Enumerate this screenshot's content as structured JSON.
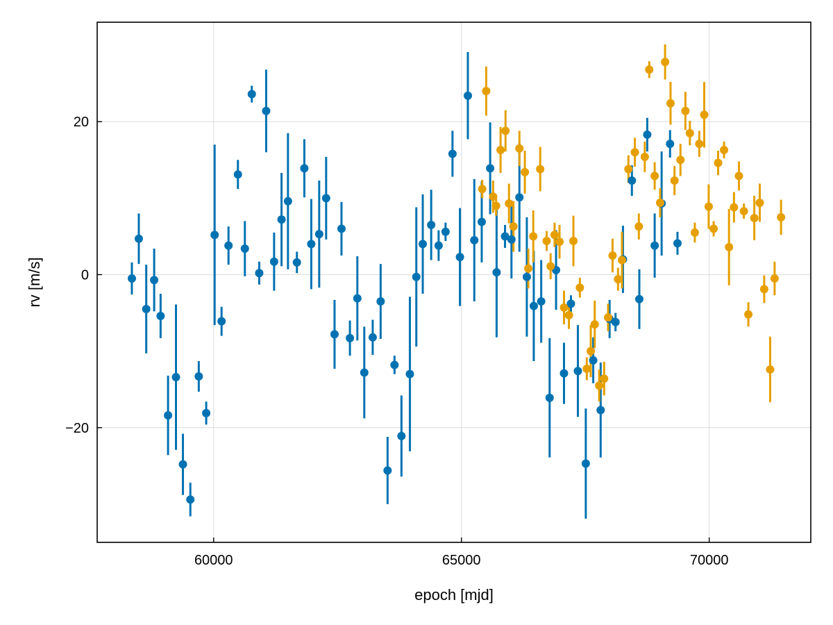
{
  "chart_data": {
    "type": "scatter",
    "xlabel": "epoch [mjd]",
    "ylabel": "rv [m/s]",
    "xlim": [
      57650,
      72050
    ],
    "ylim": [
      -35,
      33
    ],
    "x_ticks": [
      {
        "value": 60000,
        "label": "60000"
      },
      {
        "value": 65000,
        "label": "65000"
      },
      {
        "value": 70000,
        "label": "70000"
      }
    ],
    "y_ticks": [
      {
        "value": -20,
        "label": "−20"
      },
      {
        "value": 0,
        "label": "0"
      },
      {
        "value": 20,
        "label": "20"
      }
    ],
    "grid": true,
    "legend": "none",
    "series": [
      {
        "color": "#0072B2",
        "points": [
          {
            "x": 58350,
            "y": -0.5,
            "err": 2.1
          },
          {
            "x": 58490,
            "y": 4.7,
            "err": 3.3
          },
          {
            "x": 58640,
            "y": -4.5,
            "err": 5.8
          },
          {
            "x": 58800,
            "y": -0.7,
            "err": 4.1
          },
          {
            "x": 58930,
            "y": -5.4,
            "err": 2.9
          },
          {
            "x": 59080,
            "y": -18.4,
            "err": 5.2
          },
          {
            "x": 59240,
            "y": -13.4,
            "err": 9.5
          },
          {
            "x": 59380,
            "y": -24.8,
            "err": 4.0
          },
          {
            "x": 59530,
            "y": -29.4,
            "err": 2.2
          },
          {
            "x": 59700,
            "y": -13.3,
            "err": 2.0
          },
          {
            "x": 59850,
            "y": -18.1,
            "err": 1.5
          },
          {
            "x": 60020,
            "y": 5.2,
            "err": 11.8
          },
          {
            "x": 60160,
            "y": -6.1,
            "err": 1.9
          },
          {
            "x": 60300,
            "y": 3.8,
            "err": 2.5
          },
          {
            "x": 60490,
            "y": 13.1,
            "err": 1.9
          },
          {
            "x": 60630,
            "y": 3.4,
            "err": 3.6
          },
          {
            "x": 60770,
            "y": 23.6,
            "err": 1.1
          },
          {
            "x": 60920,
            "y": 0.2,
            "err": 1.5
          },
          {
            "x": 61060,
            "y": 21.4,
            "err": 5.4
          },
          {
            "x": 61220,
            "y": 1.7,
            "err": 3.8
          },
          {
            "x": 61370,
            "y": 7.2,
            "err": 6.1
          },
          {
            "x": 61500,
            "y": 9.6,
            "err": 8.9
          },
          {
            "x": 61680,
            "y": 1.6,
            "err": 1.4
          },
          {
            "x": 61830,
            "y": 13.9,
            "err": 3.8
          },
          {
            "x": 61970,
            "y": 4.0,
            "err": 5.9
          },
          {
            "x": 62130,
            "y": 5.3,
            "err": 7.0
          },
          {
            "x": 62270,
            "y": 10.0,
            "err": 5.4
          },
          {
            "x": 62440,
            "y": -7.8,
            "err": 4.5
          },
          {
            "x": 62580,
            "y": 6.0,
            "err": 3.5
          },
          {
            "x": 62750,
            "y": -8.3,
            "err": 2.3
          },
          {
            "x": 62900,
            "y": -3.1,
            "err": 5.5
          },
          {
            "x": 63040,
            "y": -12.8,
            "err": 6.0
          },
          {
            "x": 63210,
            "y": -8.2,
            "err": 2.3
          },
          {
            "x": 63370,
            "y": -3.5,
            "err": 4.9
          },
          {
            "x": 63510,
            "y": -25.6,
            "err": 4.4
          },
          {
            "x": 63650,
            "y": -11.8,
            "err": 1.2
          },
          {
            "x": 63790,
            "y": -21.1,
            "err": 5.3
          },
          {
            "x": 63960,
            "y": -13.0,
            "err": 10.1
          },
          {
            "x": 64090,
            "y": -0.3,
            "err": 9.1
          },
          {
            "x": 64220,
            "y": 4.0,
            "err": 6.5
          },
          {
            "x": 64390,
            "y": 6.5,
            "err": 4.6
          },
          {
            "x": 64540,
            "y": 3.8,
            "err": 2.0
          },
          {
            "x": 64680,
            "y": 5.6,
            "err": 1.2
          },
          {
            "x": 64820,
            "y": 15.8,
            "err": 3.0
          },
          {
            "x": 64970,
            "y": 2.3,
            "err": 6.4
          },
          {
            "x": 65130,
            "y": 23.4,
            "err": 5.7
          },
          {
            "x": 65260,
            "y": 4.5,
            "err": 8.0
          },
          {
            "x": 65410,
            "y": 6.9,
            "err": 5.3
          },
          {
            "x": 65580,
            "y": 13.9,
            "err": 6.0
          },
          {
            "x": 65710,
            "y": 0.3,
            "err": 8.5
          },
          {
            "x": 65880,
            "y": 5.0,
            "err": 1.5
          },
          {
            "x": 66010,
            "y": 4.6,
            "err": 5.1
          },
          {
            "x": 66170,
            "y": 10.1,
            "err": 7.1
          },
          {
            "x": 66320,
            "y": -0.3,
            "err": 7.8
          },
          {
            "x": 66460,
            "y": -4.1,
            "err": 7.2
          },
          {
            "x": 66610,
            "y": -3.5,
            "err": 5.4
          },
          {
            "x": 66780,
            "y": -16.1,
            "err": 7.8
          },
          {
            "x": 66910,
            "y": 0.6,
            "err": 5.2
          },
          {
            "x": 67070,
            "y": -12.9,
            "err": 4.0
          },
          {
            "x": 67210,
            "y": -3.8,
            "err": 1.1
          },
          {
            "x": 67350,
            "y": -12.6,
            "err": 6.0
          },
          {
            "x": 67510,
            "y": -24.7,
            "err": 7.2
          },
          {
            "x": 67660,
            "y": -11.2,
            "err": 3.0
          },
          {
            "x": 67810,
            "y": -17.7,
            "err": 6.2
          },
          {
            "x": 67990,
            "y": -5.8,
            "err": 2.5
          },
          {
            "x": 68110,
            "y": -6.2,
            "err": 1.2
          },
          {
            "x": 68260,
            "y": 2.0,
            "err": 4.4
          },
          {
            "x": 68440,
            "y": 12.3,
            "err": 2.0
          },
          {
            "x": 68590,
            "y": -3.2,
            "err": 3.9
          },
          {
            "x": 68750,
            "y": 18.3,
            "err": 2.2
          },
          {
            "x": 68900,
            "y": 3.8,
            "err": 4.2
          },
          {
            "x": 69040,
            "y": 9.3,
            "err": 6.8
          },
          {
            "x": 69210,
            "y": 17.1,
            "err": 1.8
          },
          {
            "x": 69360,
            "y": 4.1,
            "err": 1.5
          }
        ]
      },
      {
        "color": "#E69F00",
        "points": [
          {
            "x": 65420,
            "y": 11.2,
            "err": 1.2
          },
          {
            "x": 65500,
            "y": 24.0,
            "err": 3.2
          },
          {
            "x": 65640,
            "y": 10.2,
            "err": 2.1
          },
          {
            "x": 65700,
            "y": 9.0,
            "err": 1.3
          },
          {
            "x": 65790,
            "y": 16.3,
            "err": 3.0
          },
          {
            "x": 65890,
            "y": 18.8,
            "err": 2.7
          },
          {
            "x": 65960,
            "y": 9.3,
            "err": 2.6
          },
          {
            "x": 66050,
            "y": 6.3,
            "err": 3.3
          },
          {
            "x": 66170,
            "y": 16.5,
            "err": 2.3
          },
          {
            "x": 66280,
            "y": 13.4,
            "err": 2.8
          },
          {
            "x": 66350,
            "y": 0.8,
            "err": 2.6
          },
          {
            "x": 66450,
            "y": 5.0,
            "err": 3.4
          },
          {
            "x": 66590,
            "y": 13.8,
            "err": 2.9
          },
          {
            "x": 66720,
            "y": 4.4,
            "err": 1.3
          },
          {
            "x": 66800,
            "y": 1.1,
            "err": 1.7
          },
          {
            "x": 66880,
            "y": 5.2,
            "err": 1.6
          },
          {
            "x": 66980,
            "y": 4.3,
            "err": 2.2
          },
          {
            "x": 67070,
            "y": -4.3,
            "err": 2.2
          },
          {
            "x": 67170,
            "y": -5.3,
            "err": 1.8
          },
          {
            "x": 67260,
            "y": 4.4,
            "err": 3.3
          },
          {
            "x": 67390,
            "y": -1.7,
            "err": 1.3
          },
          {
            "x": 67530,
            "y": -12.3,
            "err": 1.5
          },
          {
            "x": 67610,
            "y": -10.0,
            "err": 3.4
          },
          {
            "x": 67690,
            "y": -6.5,
            "err": 3.1
          },
          {
            "x": 67780,
            "y": -14.5,
            "err": 2.1
          },
          {
            "x": 67880,
            "y": -13.6,
            "err": 2.2
          },
          {
            "x": 67960,
            "y": -5.6,
            "err": 1.8
          },
          {
            "x": 68050,
            "y": 2.5,
            "err": 2.2
          },
          {
            "x": 68160,
            "y": -0.6,
            "err": 1.5
          },
          {
            "x": 68240,
            "y": 1.9,
            "err": 3.7
          },
          {
            "x": 68370,
            "y": 13.8,
            "err": 1.8
          },
          {
            "x": 68500,
            "y": 16.0,
            "err": 1.9
          },
          {
            "x": 68580,
            "y": 6.3,
            "err": 1.7
          },
          {
            "x": 68700,
            "y": 15.4,
            "err": 2.0
          },
          {
            "x": 68790,
            "y": 26.8,
            "err": 1.1
          },
          {
            "x": 68900,
            "y": 12.9,
            "err": 1.8
          },
          {
            "x": 69010,
            "y": 9.4,
            "err": 1.9
          },
          {
            "x": 69110,
            "y": 27.8,
            "err": 2.3
          },
          {
            "x": 69220,
            "y": 22.4,
            "err": 2.8
          },
          {
            "x": 69300,
            "y": 12.3,
            "err": 1.9
          },
          {
            "x": 69420,
            "y": 15.0,
            "err": 2.1
          },
          {
            "x": 69520,
            "y": 21.4,
            "err": 2.5
          },
          {
            "x": 69610,
            "y": 18.5,
            "err": 1.6
          },
          {
            "x": 69710,
            "y": 5.5,
            "err": 1.3
          },
          {
            "x": 69800,
            "y": 17.1,
            "err": 1.7
          },
          {
            "x": 69900,
            "y": 20.9,
            "err": 4.3
          },
          {
            "x": 69990,
            "y": 8.9,
            "err": 2.9
          },
          {
            "x": 70090,
            "y": 6.0,
            "err": 1.0
          },
          {
            "x": 70180,
            "y": 14.6,
            "err": 1.6
          },
          {
            "x": 70300,
            "y": 16.3,
            "err": 1.1
          },
          {
            "x": 70400,
            "y": 3.6,
            "err": 5.0
          },
          {
            "x": 70500,
            "y": 8.8,
            "err": 2.0
          },
          {
            "x": 70600,
            "y": 12.9,
            "err": 1.9
          },
          {
            "x": 70700,
            "y": 8.3,
            "err": 1.0
          },
          {
            "x": 70790,
            "y": -5.2,
            "err": 1.6
          },
          {
            "x": 70910,
            "y": 7.4,
            "err": 2.9
          },
          {
            "x": 71020,
            "y": 9.4,
            "err": 2.5
          },
          {
            "x": 71110,
            "y": -1.9,
            "err": 1.8
          },
          {
            "x": 71230,
            "y": -12.4,
            "err": 4.3
          },
          {
            "x": 71320,
            "y": -0.5,
            "err": 2.2
          },
          {
            "x": 71450,
            "y": 7.5,
            "err": 2.3
          }
        ]
      }
    ]
  }
}
